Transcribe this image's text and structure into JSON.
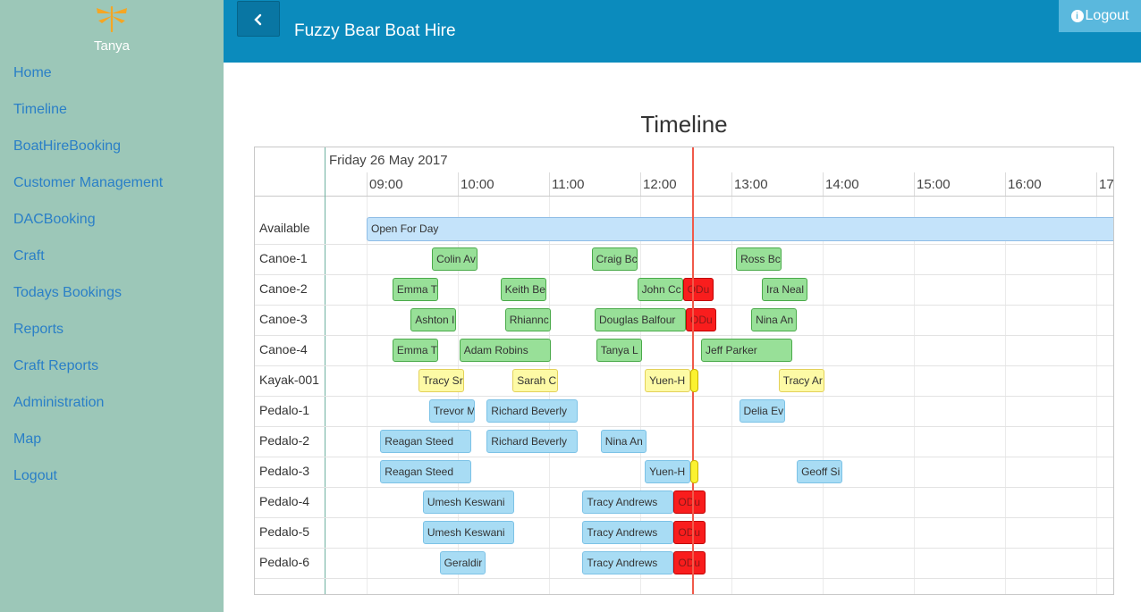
{
  "sidebar": {
    "user": "Tanya",
    "logo_icon": "dragonfly-icon",
    "items": [
      {
        "label": "Home"
      },
      {
        "label": "Timeline"
      },
      {
        "label": "BoatHireBooking"
      },
      {
        "label": "Customer Management"
      },
      {
        "label": "DACBooking"
      },
      {
        "label": "Craft"
      },
      {
        "label": "Todays Bookings"
      },
      {
        "label": "Reports"
      },
      {
        "label": "Craft Reports"
      },
      {
        "label": "Administration"
      },
      {
        "label": "Map"
      },
      {
        "label": "Logout"
      }
    ]
  },
  "header": {
    "title": "Fuzzy Bear Boat Hire",
    "back_icon": "chevron-left-icon",
    "logout_label": "Logout",
    "logout_icon": "info-circle-icon"
  },
  "timeline": {
    "title": "Timeline",
    "date": "Friday 26 May 2017",
    "hours": [
      "09:00",
      "10:00",
      "11:00",
      "12:00",
      "13:00",
      "14:00",
      "15:00",
      "16:00",
      "17"
    ],
    "available_label": "Available",
    "available_text": "Open For Day",
    "rows": [
      {
        "craft": "Canoe-1",
        "bookings": [
          {
            "text": "Colin Av",
            "start": "09:43",
            "end": "10:13",
            "status": "green"
          },
          {
            "text": "Craig Bc",
            "start": "11:28",
            "end": "11:58",
            "status": "green"
          },
          {
            "text": "Ross Bc",
            "start": "13:03",
            "end": "13:33",
            "status": "green"
          }
        ]
      },
      {
        "craft": "Canoe-2",
        "bookings": [
          {
            "text": "Emma T",
            "start": "09:17",
            "end": "09:47",
            "status": "green"
          },
          {
            "text": "Keith Be",
            "start": "10:28",
            "end": "10:58",
            "status": "green"
          },
          {
            "text": "John Cc",
            "start": "11:58",
            "end": "12:28",
            "status": "green"
          },
          {
            "text": "ODu",
            "start": "12:28",
            "end": "12:48",
            "status": "red"
          },
          {
            "text": "Ira Neal",
            "start": "13:20",
            "end": "13:50",
            "status": "green"
          }
        ]
      },
      {
        "craft": "Canoe-3",
        "bookings": [
          {
            "text": "Ashton I",
            "start": "09:29",
            "end": "09:59",
            "status": "green"
          },
          {
            "text": "Rhiannc",
            "start": "10:31",
            "end": "11:01",
            "status": "green"
          },
          {
            "text": "Douglas Balfour",
            "start": "11:30",
            "end": "12:30",
            "status": "green"
          },
          {
            "text": "ODu",
            "start": "12:30",
            "end": "12:50",
            "status": "red"
          },
          {
            "text": "Nina An",
            "start": "13:13",
            "end": "13:43",
            "status": "green"
          }
        ]
      },
      {
        "craft": "Canoe-4",
        "bookings": [
          {
            "text": "Emma T",
            "start": "09:17",
            "end": "09:47",
            "status": "green"
          },
          {
            "text": "Adam Robins",
            "start": "10:01",
            "end": "11:01",
            "status": "green"
          },
          {
            "text": "Tanya L",
            "start": "11:31",
            "end": "12:01",
            "status": "green"
          },
          {
            "text": "Jeff Parker",
            "start": "12:40",
            "end": "13:40",
            "status": "green"
          }
        ]
      },
      {
        "craft": "Kayak-001",
        "bookings": [
          {
            "text": "Tracy Sr",
            "start": "09:34",
            "end": "10:04",
            "status": "yellow"
          },
          {
            "text": "Sarah C",
            "start": "10:36",
            "end": "11:06",
            "status": "yellow"
          },
          {
            "text": "Yuen-H",
            "start": "12:03",
            "end": "12:33",
            "status": "yellow"
          },
          {
            "text": "",
            "start": "12:33",
            "end": "12:38",
            "status": "ymark"
          },
          {
            "text": "Tracy Ar",
            "start": "13:31",
            "end": "14:01",
            "status": "yellow"
          }
        ]
      },
      {
        "craft": "Pedalo-1",
        "bookings": [
          {
            "text": "Trevor M",
            "start": "09:41",
            "end": "10:11",
            "status": "blue"
          },
          {
            "text": "Richard Beverly",
            "start": "10:19",
            "end": "11:19",
            "status": "blue"
          },
          {
            "text": "Delia Ev",
            "start": "13:05",
            "end": "13:35",
            "status": "blue"
          }
        ]
      },
      {
        "craft": "Pedalo-2",
        "bookings": [
          {
            "text": "Reagan Steed",
            "start": "09:09",
            "end": "10:09",
            "status": "blue"
          },
          {
            "text": "Richard Beverly",
            "start": "10:19",
            "end": "11:19",
            "status": "blue"
          },
          {
            "text": "Nina An",
            "start": "11:34",
            "end": "12:04",
            "status": "blue"
          }
        ]
      },
      {
        "craft": "Pedalo-3",
        "bookings": [
          {
            "text": "Reagan Steed",
            "start": "09:09",
            "end": "10:09",
            "status": "blue"
          },
          {
            "text": "Yuen-H",
            "start": "12:03",
            "end": "12:33",
            "status": "blue"
          },
          {
            "text": "",
            "start": "12:33",
            "end": "12:38",
            "status": "ymark"
          },
          {
            "text": "Geoff Si",
            "start": "13:43",
            "end": "14:13",
            "status": "blue"
          }
        ]
      },
      {
        "craft": "Pedalo-4",
        "bookings": [
          {
            "text": "Umesh Keswani",
            "start": "09:37",
            "end": "10:37",
            "status": "blue"
          },
          {
            "text": "Tracy Andrews",
            "start": "11:22",
            "end": "12:22",
            "status": "blue"
          },
          {
            "text": "ODu",
            "start": "12:22",
            "end": "12:43",
            "status": "red"
          }
        ]
      },
      {
        "craft": "Pedalo-5",
        "bookings": [
          {
            "text": "Umesh Keswani",
            "start": "09:37",
            "end": "10:37",
            "status": "blue"
          },
          {
            "text": "Tracy Andrews",
            "start": "11:22",
            "end": "12:22",
            "status": "blue"
          },
          {
            "text": "ODu",
            "start": "12:22",
            "end": "12:43",
            "status": "red"
          }
        ]
      },
      {
        "craft": "Pedalo-6",
        "bookings": [
          {
            "text": "Geraldir",
            "start": "09:48",
            "end": "10:18",
            "status": "blue"
          },
          {
            "text": "Tracy Andrews",
            "start": "11:22",
            "end": "12:22",
            "status": "blue"
          },
          {
            "text": "ODu",
            "start": "12:22",
            "end": "12:43",
            "status": "red"
          }
        ]
      }
    ]
  }
}
